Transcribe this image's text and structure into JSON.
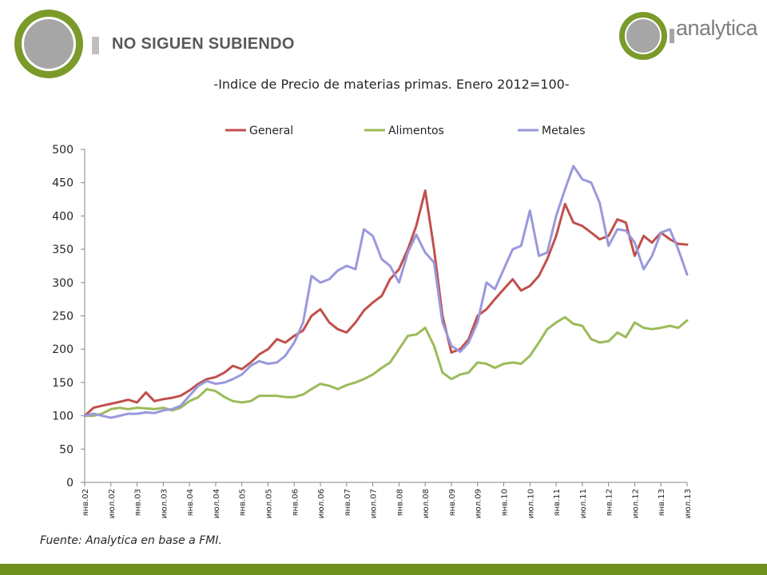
{
  "header": {
    "title": "NO SIGUEN SUBIENDO",
    "brand": "analytica",
    "colors": {
      "logo_green": "#7a9a2a",
      "logo_gray": "#a6a6a6",
      "footer": "#6e8e1e"
    }
  },
  "source": "Fuente: Analytica en base a FMI.",
  "chart_data": {
    "type": "line",
    "title": "-Indice de Precio de materias primas. Enero 2012=100-",
    "ylim": [
      0,
      500
    ],
    "yticks": [
      0,
      50,
      100,
      150,
      200,
      250,
      300,
      350,
      400,
      450,
      500
    ],
    "xlim": [
      2002.0,
      2013.5
    ],
    "xticks": [
      "янв.02",
      "июл.02",
      "янв.03",
      "июл.03",
      "янв.04",
      "июл.04",
      "янв.05",
      "июл.05",
      "янв.06",
      "июл.06",
      "янв.07",
      "июл.07",
      "янв.08",
      "июл.08",
      "янв.09",
      "июл.09",
      "янв.10",
      "июл.10",
      "янв.11",
      "июл.11",
      "янв.12",
      "июл.12",
      "янв.13",
      "июл.13"
    ],
    "legend_position": "top",
    "grid": false,
    "series": [
      {
        "name": "General",
        "color": "#c0504d",
        "points": [
          [
            2002.0,
            100
          ],
          [
            2002.17,
            112
          ],
          [
            2002.33,
            115
          ],
          [
            2002.5,
            118
          ],
          [
            2002.67,
            121
          ],
          [
            2002.83,
            124
          ],
          [
            2003.0,
            120
          ],
          [
            2003.17,
            135
          ],
          [
            2003.33,
            122
          ],
          [
            2003.5,
            125
          ],
          [
            2003.67,
            127
          ],
          [
            2003.83,
            130
          ],
          [
            2004.0,
            138
          ],
          [
            2004.17,
            148
          ],
          [
            2004.33,
            155
          ],
          [
            2004.5,
            158
          ],
          [
            2004.67,
            165
          ],
          [
            2004.83,
            175
          ],
          [
            2005.0,
            170
          ],
          [
            2005.17,
            180
          ],
          [
            2005.33,
            192
          ],
          [
            2005.5,
            200
          ],
          [
            2005.67,
            215
          ],
          [
            2005.83,
            210
          ],
          [
            2006.0,
            220
          ],
          [
            2006.17,
            228
          ],
          [
            2006.33,
            250
          ],
          [
            2006.5,
            260
          ],
          [
            2006.67,
            240
          ],
          [
            2006.83,
            230
          ],
          [
            2007.0,
            225
          ],
          [
            2007.17,
            240
          ],
          [
            2007.33,
            258
          ],
          [
            2007.5,
            270
          ],
          [
            2007.67,
            280
          ],
          [
            2007.83,
            305
          ],
          [
            2008.0,
            320
          ],
          [
            2008.17,
            350
          ],
          [
            2008.33,
            385
          ],
          [
            2008.5,
            438
          ],
          [
            2008.67,
            350
          ],
          [
            2008.83,
            250
          ],
          [
            2009.0,
            195
          ],
          [
            2009.17,
            200
          ],
          [
            2009.33,
            215
          ],
          [
            2009.5,
            250
          ],
          [
            2009.67,
            260
          ],
          [
            2009.83,
            275
          ],
          [
            2010.0,
            290
          ],
          [
            2010.17,
            305
          ],
          [
            2010.33,
            288
          ],
          [
            2010.5,
            295
          ],
          [
            2010.67,
            310
          ],
          [
            2010.83,
            335
          ],
          [
            2011.0,
            370
          ],
          [
            2011.17,
            418
          ],
          [
            2011.33,
            390
          ],
          [
            2011.5,
            385
          ],
          [
            2011.67,
            375
          ],
          [
            2011.83,
            365
          ],
          [
            2012.0,
            370
          ],
          [
            2012.17,
            395
          ],
          [
            2012.33,
            390
          ],
          [
            2012.5,
            340
          ],
          [
            2012.67,
            370
          ],
          [
            2012.83,
            360
          ],
          [
            2013.0,
            375
          ],
          [
            2013.17,
            365
          ],
          [
            2013.33,
            358
          ],
          [
            2013.5,
            357
          ]
        ]
      },
      {
        "name": "Alimentos",
        "color": "#9bbb59",
        "points": [
          [
            2002.0,
            100
          ],
          [
            2002.17,
            100
          ],
          [
            2002.33,
            103
          ],
          [
            2002.5,
            110
          ],
          [
            2002.67,
            112
          ],
          [
            2002.83,
            110
          ],
          [
            2003.0,
            112
          ],
          [
            2003.17,
            111
          ],
          [
            2003.33,
            110
          ],
          [
            2003.5,
            112
          ],
          [
            2003.67,
            108
          ],
          [
            2003.83,
            112
          ],
          [
            2004.0,
            122
          ],
          [
            2004.17,
            128
          ],
          [
            2004.33,
            140
          ],
          [
            2004.5,
            137
          ],
          [
            2004.67,
            128
          ],
          [
            2004.83,
            122
          ],
          [
            2005.0,
            120
          ],
          [
            2005.17,
            122
          ],
          [
            2005.33,
            130
          ],
          [
            2005.5,
            130
          ],
          [
            2005.67,
            130
          ],
          [
            2005.83,
            128
          ],
          [
            2006.0,
            128
          ],
          [
            2006.17,
            132
          ],
          [
            2006.33,
            140
          ],
          [
            2006.5,
            148
          ],
          [
            2006.67,
            145
          ],
          [
            2006.83,
            140
          ],
          [
            2007.0,
            146
          ],
          [
            2007.17,
            150
          ],
          [
            2007.33,
            155
          ],
          [
            2007.5,
            162
          ],
          [
            2007.67,
            172
          ],
          [
            2007.83,
            180
          ],
          [
            2008.0,
            200
          ],
          [
            2008.17,
            220
          ],
          [
            2008.33,
            222
          ],
          [
            2008.5,
            232
          ],
          [
            2008.67,
            205
          ],
          [
            2008.83,
            165
          ],
          [
            2009.0,
            155
          ],
          [
            2009.17,
            162
          ],
          [
            2009.33,
            165
          ],
          [
            2009.5,
            180
          ],
          [
            2009.67,
            178
          ],
          [
            2009.83,
            172
          ],
          [
            2010.0,
            178
          ],
          [
            2010.17,
            180
          ],
          [
            2010.33,
            178
          ],
          [
            2010.5,
            190
          ],
          [
            2010.67,
            210
          ],
          [
            2010.83,
            230
          ],
          [
            2011.0,
            240
          ],
          [
            2011.17,
            248
          ],
          [
            2011.33,
            238
          ],
          [
            2011.5,
            235
          ],
          [
            2011.67,
            215
          ],
          [
            2011.83,
            210
          ],
          [
            2012.0,
            212
          ],
          [
            2012.17,
            225
          ],
          [
            2012.33,
            218
          ],
          [
            2012.5,
            240
          ],
          [
            2012.67,
            232
          ],
          [
            2012.83,
            230
          ],
          [
            2013.0,
            232
          ],
          [
            2013.17,
            235
          ],
          [
            2013.33,
            232
          ],
          [
            2013.5,
            243
          ]
        ]
      },
      {
        "name": "Metales",
        "color": "#9999dd",
        "points": [
          [
            2002.0,
            100
          ],
          [
            2002.17,
            103
          ],
          [
            2002.33,
            100
          ],
          [
            2002.5,
            97
          ],
          [
            2002.67,
            100
          ],
          [
            2002.83,
            103
          ],
          [
            2003.0,
            103
          ],
          [
            2003.17,
            105
          ],
          [
            2003.33,
            104
          ],
          [
            2003.5,
            108
          ],
          [
            2003.67,
            110
          ],
          [
            2003.83,
            115
          ],
          [
            2004.0,
            130
          ],
          [
            2004.17,
            145
          ],
          [
            2004.33,
            152
          ],
          [
            2004.5,
            148
          ],
          [
            2004.67,
            150
          ],
          [
            2004.83,
            155
          ],
          [
            2005.0,
            162
          ],
          [
            2005.17,
            175
          ],
          [
            2005.33,
            182
          ],
          [
            2005.5,
            178
          ],
          [
            2005.67,
            180
          ],
          [
            2005.83,
            190
          ],
          [
            2006.0,
            210
          ],
          [
            2006.17,
            240
          ],
          [
            2006.33,
            310
          ],
          [
            2006.5,
            300
          ],
          [
            2006.67,
            305
          ],
          [
            2006.83,
            318
          ],
          [
            2007.0,
            325
          ],
          [
            2007.17,
            320
          ],
          [
            2007.33,
            380
          ],
          [
            2007.5,
            370
          ],
          [
            2007.67,
            335
          ],
          [
            2007.83,
            325
          ],
          [
            2008.0,
            300
          ],
          [
            2008.17,
            345
          ],
          [
            2008.33,
            372
          ],
          [
            2008.5,
            345
          ],
          [
            2008.67,
            330
          ],
          [
            2008.83,
            240
          ],
          [
            2009.0,
            205
          ],
          [
            2009.17,
            196
          ],
          [
            2009.33,
            210
          ],
          [
            2009.5,
            240
          ],
          [
            2009.67,
            300
          ],
          [
            2009.83,
            290
          ],
          [
            2010.0,
            320
          ],
          [
            2010.17,
            350
          ],
          [
            2010.33,
            355
          ],
          [
            2010.5,
            408
          ],
          [
            2010.67,
            340
          ],
          [
            2010.83,
            345
          ],
          [
            2011.0,
            400
          ],
          [
            2011.17,
            440
          ],
          [
            2011.33,
            475
          ],
          [
            2011.5,
            455
          ],
          [
            2011.67,
            450
          ],
          [
            2011.83,
            420
          ],
          [
            2012.0,
            355
          ],
          [
            2012.17,
            380
          ],
          [
            2012.33,
            378
          ],
          [
            2012.5,
            360
          ],
          [
            2012.67,
            320
          ],
          [
            2012.83,
            340
          ],
          [
            2013.0,
            375
          ],
          [
            2013.17,
            380
          ],
          [
            2013.33,
            350
          ],
          [
            2013.5,
            312
          ]
        ]
      }
    ]
  }
}
